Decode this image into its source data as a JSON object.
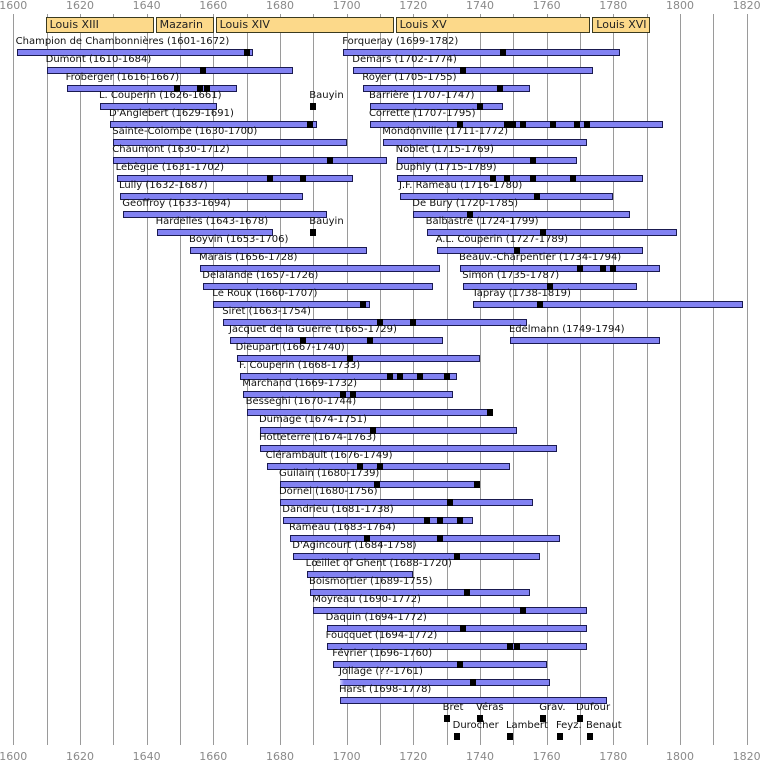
{
  "chart_data": {
    "type": "timeline",
    "xlim": [
      1600,
      1820
    ],
    "tick_labels": [
      "1600",
      "1620",
      "1640",
      "1660",
      "1680",
      "1700",
      "1720",
      "1740",
      "1760",
      "1780",
      "1800",
      "1820"
    ],
    "grid": true,
    "colors": {
      "bar": "#8282f2",
      "bar_border": "#1a1a50",
      "marker": "#000000",
      "reign": "#fcd98a",
      "grid": "#9a9a9a"
    },
    "reigns": [
      {
        "label": "Louis XIII",
        "start": 1610,
        "end": 1643
      },
      {
        "label": "Mazarin",
        "start": 1643,
        "end": 1661
      },
      {
        "label": "Louis XIV",
        "start": 1661,
        "end": 1715
      },
      {
        "label": "Louis XV",
        "start": 1715,
        "end": 1774
      },
      {
        "label": "Louis XVI",
        "start": 1774,
        "end": 1792
      }
    ],
    "composers": [
      {
        "row": 0,
        "label": "Champion de Chambonnières (1601-1672)",
        "start": 1601,
        "end": 1672,
        "markers": [
          1670
        ]
      },
      {
        "row": 0,
        "label": "Forqueray (1699-1782)",
        "start": 1699,
        "end": 1782,
        "markers": [
          1747
        ]
      },
      {
        "row": 1,
        "label": "Dumont (1610-1684)",
        "start": 1610,
        "end": 1684,
        "markers": [
          1657
        ]
      },
      {
        "row": 1,
        "label": "Demars (1702-1774)",
        "start": 1702,
        "end": 1774,
        "markers": [
          1735
        ]
      },
      {
        "row": 2,
        "label": "Froberger (1616-1667)",
        "start": 1616,
        "end": 1667,
        "markers": [
          1649,
          1656,
          1658
        ]
      },
      {
        "row": 2,
        "label": "Royer (1705-1755)",
        "start": 1705,
        "end": 1755,
        "markers": [
          1746
        ]
      },
      {
        "row": 3,
        "label": "L. Couperin (1626-1661)",
        "start": 1626,
        "end": 1661,
        "markers": []
      },
      {
        "row": 3,
        "label": "Bauyin",
        "markers": [
          1690
        ]
      },
      {
        "row": 3,
        "label": "Barrière (1707-1747)",
        "start": 1707,
        "end": 1747,
        "markers": [
          1740
        ]
      },
      {
        "row": 4,
        "label": "D'Anglebert (1629-1691)",
        "start": 1629,
        "end": 1691,
        "markers": [
          1689
        ]
      },
      {
        "row": 4,
        "label": "Corrette (1707-1795)",
        "start": 1707,
        "end": 1795,
        "markers": [
          1734,
          1748,
          1750,
          1753,
          1762,
          1769,
          1772
        ]
      },
      {
        "row": 5,
        "label": "Sainte-Colombe (1630-1700)",
        "start": 1630,
        "end": 1700,
        "markers": []
      },
      {
        "row": 5,
        "label": "Mondonville (1711-1772)",
        "start": 1711,
        "end": 1772,
        "markers": []
      },
      {
        "row": 6,
        "label": "Chaumont (1630-1712)",
        "start": 1630,
        "end": 1712,
        "markers": [
          1695
        ]
      },
      {
        "row": 6,
        "label": "Noblet (1715-1769)",
        "start": 1715,
        "end": 1769,
        "markers": [
          1756
        ]
      },
      {
        "row": 7,
        "label": "Lebègue (1631-1702)",
        "start": 1631,
        "end": 1702,
        "markers": [
          1677,
          1687
        ]
      },
      {
        "row": 7,
        "label": "Duphly (1715-1789)",
        "start": 1715,
        "end": 1789,
        "markers": [
          1744,
          1748,
          1756,
          1768
        ]
      },
      {
        "row": 8,
        "label": "Lully (1632-1687)",
        "start": 1632,
        "end": 1687,
        "markers": []
      },
      {
        "row": 8,
        "label": "J.F. Rameau (1716-1780)",
        "start": 1716,
        "end": 1780,
        "markers": [
          1757
        ]
      },
      {
        "row": 9,
        "label": "Geoffroy (1633-1694)",
        "start": 1633,
        "end": 1694,
        "markers": []
      },
      {
        "row": 9,
        "label": "De Bury (1720-1785)",
        "start": 1720,
        "end": 1785,
        "markers": [
          1737
        ]
      },
      {
        "row": 10,
        "label": "Hardelles (1643-1678)",
        "start": 1643,
        "end": 1678,
        "markers": []
      },
      {
        "row": 10,
        "label": "Bauyin",
        "markers": [
          1690
        ]
      },
      {
        "row": 10,
        "label": "Balbastre (1724-1799)",
        "start": 1724,
        "end": 1799,
        "markers": [
          1759
        ]
      },
      {
        "row": 11,
        "label": "Boyvin (1653-1706)",
        "start": 1653,
        "end": 1706,
        "markers": []
      },
      {
        "row": 11,
        "label": "A.L. Couperin (1727-1789)",
        "start": 1727,
        "end": 1789,
        "markers": [
          1751
        ]
      },
      {
        "row": 12,
        "label": "Marais (1656-1728)",
        "start": 1656,
        "end": 1728,
        "markers": []
      },
      {
        "row": 12,
        "label": "Beauv.-Charpentier (1734-1794)",
        "start": 1734,
        "end": 1794,
        "markers": [
          1770,
          1777,
          1780
        ]
      },
      {
        "row": 13,
        "label": "Delalande (1657-1726)",
        "start": 1657,
        "end": 1726,
        "markers": []
      },
      {
        "row": 13,
        "label": "Simon (1735-1787)",
        "start": 1735,
        "end": 1787,
        "markers": [
          1761
        ]
      },
      {
        "row": 14,
        "label": "Le Roux (1660-1707)",
        "start": 1660,
        "end": 1707,
        "markers": [
          1705
        ]
      },
      {
        "row": 14,
        "label": "Tapray (1738-1819)",
        "start": 1738,
        "end": 1819,
        "markers": [
          1758
        ]
      },
      {
        "row": 15,
        "label": "Siret (1663-1754)",
        "start": 1663,
        "end": 1754,
        "markers": [
          1710,
          1720
        ]
      },
      {
        "row": 16,
        "label": "Jacquet de la Guerre (1665-1729)",
        "start": 1665,
        "end": 1729,
        "markers": [
          1687,
          1707
        ]
      },
      {
        "row": 16,
        "label": "Edelmann (1749-1794)",
        "start": 1749,
        "end": 1794,
        "markers": []
      },
      {
        "row": 17,
        "label": "Dieupart (1667-1740)",
        "start": 1667,
        "end": 1740,
        "markers": [
          1701
        ]
      },
      {
        "row": 18,
        "label": "F. Couperin (1668-1733)",
        "start": 1668,
        "end": 1733,
        "markers": [
          1713,
          1716,
          1722,
          1730
        ]
      },
      {
        "row": 19,
        "label": "Marchand (1669-1732)",
        "start": 1669,
        "end": 1732,
        "markers": [
          1699,
          1702
        ]
      },
      {
        "row": 20,
        "label": "Besseghi (1670-1744)",
        "start": 1670,
        "end": 1744,
        "markers": [
          1743
        ]
      },
      {
        "row": 21,
        "label": "Dumage (1674-1751)",
        "start": 1674,
        "end": 1751,
        "markers": [
          1708
        ]
      },
      {
        "row": 22,
        "label": "Hotteterre (1674-1763)",
        "start": 1674,
        "end": 1763,
        "markers": []
      },
      {
        "row": 23,
        "label": "Clérambault (1676-1749)",
        "start": 1676,
        "end": 1749,
        "markers": [
          1704,
          1710
        ]
      },
      {
        "row": 24,
        "label": "Guilain (1680-1739)",
        "start": 1680,
        "end": 1739,
        "markers": [
          1709,
          1739
        ]
      },
      {
        "row": 25,
        "label": "Dornel (1680-1756)",
        "start": 1680,
        "end": 1756,
        "markers": [
          1731
        ]
      },
      {
        "row": 26,
        "label": "Dandrieu (1681-1738)",
        "start": 1681,
        "end": 1738,
        "markers": [
          1724,
          1728,
          1734
        ]
      },
      {
        "row": 27,
        "label": "Rameau (1683-1764)",
        "start": 1683,
        "end": 1764,
        "markers": [
          1706,
          1728
        ]
      },
      {
        "row": 28,
        "label": "D'Agincourt (1684-1758)",
        "start": 1684,
        "end": 1758,
        "markers": [
          1733
        ]
      },
      {
        "row": 29,
        "label": "Lœillet of Ghent (1688-1720)",
        "start": 1688,
        "end": 1720,
        "markers": []
      },
      {
        "row": 30,
        "label": "Boismortier (1689-1755)",
        "start": 1689,
        "end": 1755,
        "markers": [
          1736
        ]
      },
      {
        "row": 31,
        "label": "Moyreau (1690-1772)",
        "start": 1690,
        "end": 1772,
        "markers": [
          1753
        ]
      },
      {
        "row": 32,
        "label": "Daquin (1694-1772)",
        "start": 1694,
        "end": 1772,
        "markers": [
          1735
        ]
      },
      {
        "row": 33,
        "label": "Foucquet (1694-1772)",
        "start": 1694,
        "end": 1772,
        "markers": [
          1749,
          1751
        ]
      },
      {
        "row": 34,
        "label": "Février (1696-1760)",
        "start": 1696,
        "end": 1760,
        "markers": [
          1734
        ]
      },
      {
        "row": 35,
        "label": "Jollage (??-1761)",
        "start": 1698,
        "end": 1761,
        "birth_unknown": true,
        "markers": [
          1738
        ]
      },
      {
        "row": 36,
        "label": "Harst (1698-1778)",
        "start": 1698,
        "end": 1778,
        "markers": []
      },
      {
        "row": 37,
        "label": "Bret",
        "markers": [
          1730
        ]
      },
      {
        "row": 37,
        "label": "Véras",
        "markers": [
          1740
        ]
      },
      {
        "row": 37,
        "label": "Grav.",
        "markers": [
          1759
        ]
      },
      {
        "row": 37,
        "label": "Dufour",
        "markers": [
          1770
        ]
      },
      {
        "row": 38,
        "label": "Durocher",
        "markers": [
          1733
        ]
      },
      {
        "row": 38,
        "label": "Lambert",
        "markers": [
          1749
        ]
      },
      {
        "row": 38,
        "label": "Feyz.",
        "markers": [
          1764
        ]
      },
      {
        "row": 38,
        "label": "Benaut",
        "markers": [
          1773
        ]
      }
    ]
  }
}
